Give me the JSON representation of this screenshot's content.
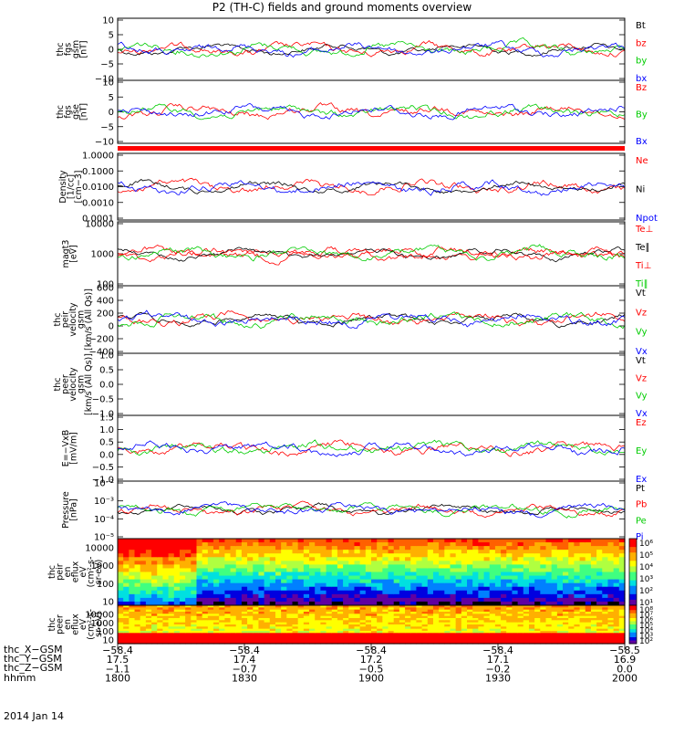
{
  "title": "P2 (TH-C) fields and ground moments overview",
  "colors": {
    "black": "#000000",
    "red": "#ff0000",
    "green": "#00cc00",
    "blue": "#0000ff"
  },
  "chart_data": {
    "type": "line",
    "time_range": [
      "18:00",
      "20:00"
    ],
    "x_ticks": [
      "1800",
      "1830",
      "1900",
      "1930",
      "2000"
    ],
    "panels": [
      {
        "id": "fgs_gsm",
        "ylabel": [
          "thc",
          "fgs",
          "gsm",
          "[nT]"
        ],
        "ylim": [
          -10,
          10
        ],
        "yticks": [
          "10",
          "5",
          "0",
          "−5",
          "−10"
        ],
        "legend": [
          {
            "name": "Bt",
            "color": "black"
          },
          {
            "name": "bz",
            "color": "red"
          },
          {
            "name": "by",
            "color": "green"
          },
          {
            "name": "bx",
            "color": "blue"
          }
        ]
      },
      {
        "id": "fgs_gse",
        "ylabel": [
          "thc",
          "fgs",
          "gse",
          "[nT]"
        ],
        "ylim": [
          -13,
          10
        ],
        "yticks": [
          "10",
          "5",
          "0",
          "−5",
          "−10"
        ],
        "legend": [
          {
            "name": "Bz",
            "color": "red"
          },
          {
            "name": "By",
            "color": "green"
          },
          {
            "name": "Bx",
            "color": "blue"
          }
        ]
      },
      {
        "id": "density",
        "ylabel": [
          "Density",
          "[1/cc]",
          "[cm−3]"
        ],
        "yscale": "log",
        "ylim": [
          0.0001,
          1
        ],
        "yticks": [
          "1.0000",
          "0.1000",
          "0.0100",
          "0.0010",
          "0.0001"
        ],
        "legend": [
          {
            "name": "Ne",
            "color": "red"
          },
          {
            "name": "Ni",
            "color": "black"
          },
          {
            "name": "Npot",
            "color": "blue"
          }
        ]
      },
      {
        "id": "temperature",
        "ylabel": [
          "magt3",
          "[eV]"
        ],
        "yscale": "log",
        "ylim": [
          50,
          10000
        ],
        "yticks": [
          "10000",
          "1000",
          "100"
        ],
        "legend": [
          {
            "name": "Te⊥",
            "color": "red"
          },
          {
            "name": "Te∥",
            "color": "black"
          },
          {
            "name": "Ti⊥",
            "color": "red"
          },
          {
            "name": "Ti∥",
            "color": "green"
          }
        ]
      },
      {
        "id": "peir_velocity",
        "ylabel": [
          "thc",
          "peir",
          "velocity",
          "gsm",
          "[km/s (All Qs)]"
        ],
        "ylim": [
          -400,
          600
        ],
        "yticks": [
          "600",
          "400",
          "200",
          "0",
          "−200",
          "−400"
        ],
        "legend": [
          {
            "name": "Vt",
            "color": "black"
          },
          {
            "name": "Vz",
            "color": "red"
          },
          {
            "name": "Vy",
            "color": "green"
          },
          {
            "name": "Vx",
            "color": "blue"
          }
        ]
      },
      {
        "id": "peer_velocity",
        "ylabel": [
          "thc",
          "peer",
          "velocity",
          "gsm",
          "[km/s (All Qs)]"
        ],
        "ylim": [
          -1,
          1
        ],
        "yticks": [
          "1.0",
          "0.5",
          "0.0",
          "−0.5",
          "−1.0"
        ],
        "legend": [
          {
            "name": "Vt",
            "color": "black"
          },
          {
            "name": "Vz",
            "color": "red"
          },
          {
            "name": "Vy",
            "color": "green"
          },
          {
            "name": "Vx",
            "color": "blue"
          }
        ]
      },
      {
        "id": "efield",
        "ylabel": [
          "E=−VxB",
          "[mV/m]"
        ],
        "ylim": [
          -1,
          1.5
        ],
        "yticks": [
          "1.5",
          "1.0",
          "0.5",
          "0.0",
          "−0.5",
          "−1.0"
        ],
        "legend": [
          {
            "name": "Ez",
            "color": "red"
          },
          {
            "name": "Ey",
            "color": "green"
          },
          {
            "name": "Ex",
            "color": "blue"
          }
        ]
      },
      {
        "id": "pressure",
        "ylabel": [
          "Pressure",
          "[nPa]"
        ],
        "yscale": "log",
        "ylim": [
          1e-05,
          0.1
        ],
        "yticks": [
          "10⁻²",
          "10⁻³",
          "10⁻⁴",
          "10⁻⁵"
        ],
        "legend": [
          {
            "name": "Pt",
            "color": "black"
          },
          {
            "name": "Pb",
            "color": "red"
          },
          {
            "name": "Pe",
            "color": "green"
          },
          {
            "name": "Pi",
            "color": "blue"
          }
        ]
      },
      {
        "id": "peir_spec",
        "type": "heatmap",
        "ylabel": [
          "thc",
          "peir",
          "en",
          "eflux",
          "eV",
          "(cm²-s-",
          "sr-eV)"
        ],
        "yscale": "log",
        "yticks": [
          "10000",
          "1000",
          "100",
          "10"
        ],
        "colorbar_ticks": [
          "10⁶",
          "10⁵",
          "10⁴",
          "10³",
          "10²",
          "10¹"
        ]
      },
      {
        "id": "peer_spec",
        "type": "heatmap",
        "ylabel": [
          "thc",
          "peer",
          "en",
          "eflux",
          "eV",
          "(cm²-s-",
          "sr-eV)"
        ],
        "yscale": "log",
        "yticks": [
          "10000",
          "1000",
          "100",
          "10"
        ],
        "colorbar_ticks": [
          "10⁸",
          "10⁷",
          "10⁶",
          "10⁵",
          "10⁴",
          "10³",
          "10²"
        ]
      }
    ],
    "ephemeris": {
      "rows": [
        {
          "label": "thc_X−GSM",
          "values": [
            "−58.4",
            "−58.4",
            "−58.4",
            "−58.4",
            "−58.5"
          ]
        },
        {
          "label": "thc_Y−GSM",
          "values": [
            "17.5",
            "17.4",
            "17.2",
            "17.1",
            "16.9"
          ]
        },
        {
          "label": "thc_Z−GSM",
          "values": [
            "−1.1",
            "−0.7",
            "−0.5",
            "−0.2",
            "0.0"
          ]
        },
        {
          "label": "hhmm",
          "values": [
            "1800",
            "1830",
            "1900",
            "1930",
            "2000"
          ]
        }
      ],
      "date": "2014 Jan 14"
    }
  }
}
